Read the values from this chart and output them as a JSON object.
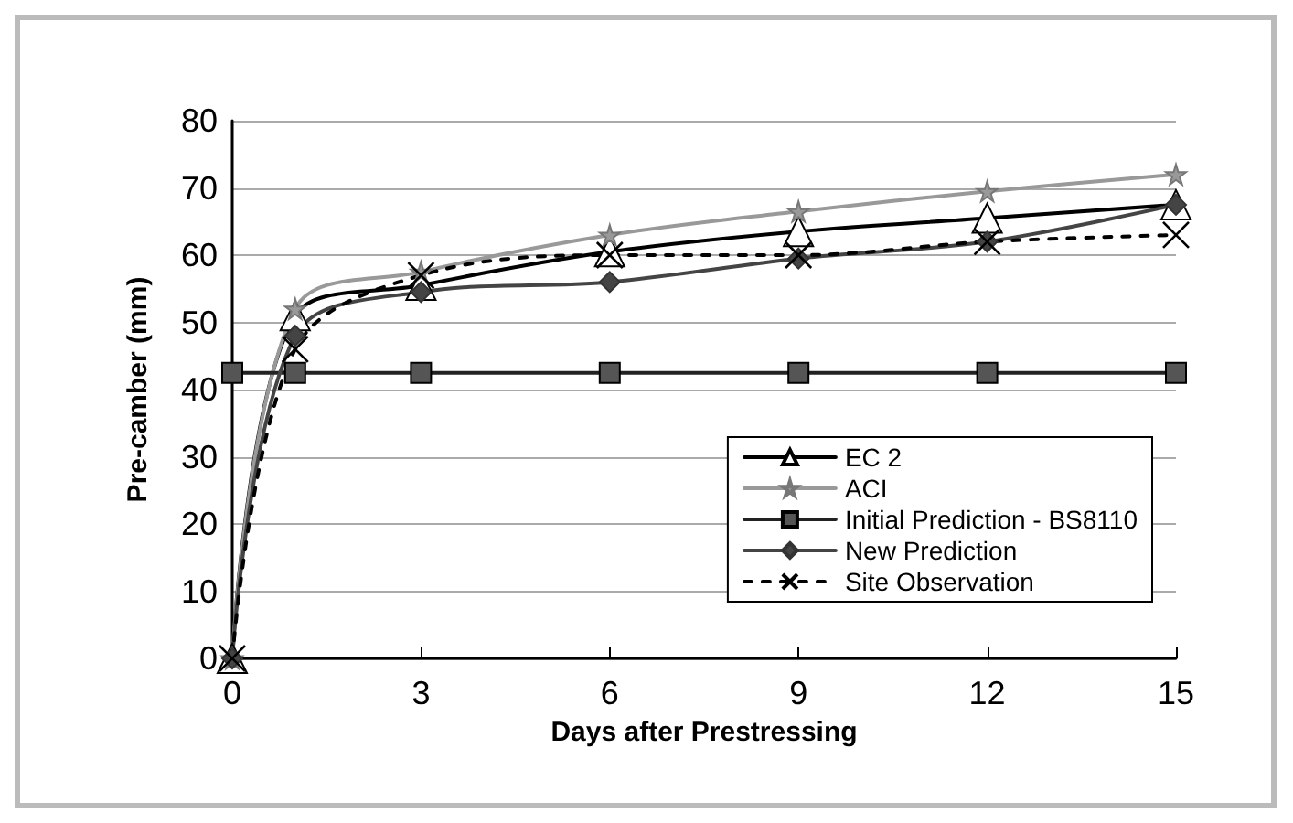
{
  "chart_data": {
    "type": "line",
    "xlabel": "Days after Prestressing",
    "ylabel": "Pre-camber (mm)",
    "x": [
      0,
      1,
      3,
      6,
      9,
      12,
      15
    ],
    "xlim": [
      0,
      15
    ],
    "xticks": [
      0,
      3,
      6,
      9,
      12,
      15
    ],
    "ylim": [
      0,
      80
    ],
    "yticks": [
      0,
      10,
      20,
      30,
      40,
      50,
      60,
      70,
      80
    ],
    "grid": "y",
    "legend": "bottom right",
    "series": [
      {
        "name": "EC 2",
        "color": "#000000",
        "marker": "triangle",
        "line_style": "solid",
        "values": [
          0,
          51,
          55.5,
          60.5,
          63.5,
          65.5,
          67.5
        ]
      },
      {
        "name": "ACI",
        "color": "#999999",
        "marker": "star",
        "line_style": "solid",
        "values": [
          0,
          52,
          57.5,
          63,
          66.5,
          69.5,
          72
        ]
      },
      {
        "name": "Initial Prediction - BS8110",
        "color": "#222222",
        "marker": "square",
        "line_style": "solid",
        "values": [
          42.5,
          42.5,
          42.5,
          42.5,
          42.5,
          42.5,
          42.5
        ]
      },
      {
        "name": "New Prediction",
        "color": "#444444",
        "marker": "diamond",
        "line_style": "solid",
        "values": [
          0,
          48,
          54.5,
          56,
          59.5,
          62,
          67.5
        ]
      },
      {
        "name": "Site Observation",
        "color": "#000000",
        "marker": "cross",
        "line_style": "dashed",
        "values": [
          0,
          46,
          57,
          60,
          60,
          62,
          63
        ]
      }
    ]
  }
}
